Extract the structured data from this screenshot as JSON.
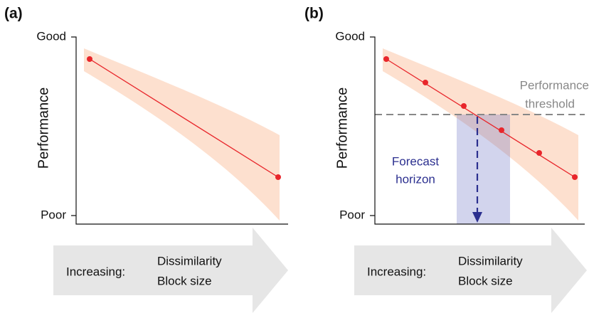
{
  "panels": [
    {
      "label": "(a)",
      "y_axis_label": "Performance",
      "y_top": "Good",
      "y_bottom": "Poor",
      "arrow_lead": "Increasing:",
      "arrow_items": [
        "Dissimilarity",
        "Block size"
      ]
    },
    {
      "label": "(b)",
      "y_axis_label": "Performance",
      "y_top": "Good",
      "y_bottom": "Poor",
      "arrow_lead": "Increasing:",
      "arrow_items": [
        "Dissimilarity",
        "Block size"
      ],
      "threshold_label": [
        "Performance",
        "threshold"
      ],
      "forecast_label": [
        "Forecast",
        "horizon"
      ]
    }
  ]
}
